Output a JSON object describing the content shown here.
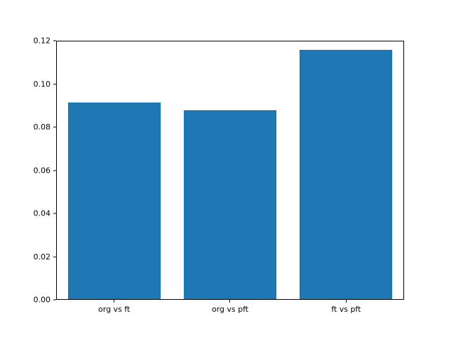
{
  "chart_data": {
    "type": "bar",
    "categories": [
      "org vs ft",
      "org vs pft",
      "ft vs pft"
    ],
    "values": [
      0.0915,
      0.088,
      0.116
    ],
    "title": "",
    "xlabel": "",
    "ylabel": "",
    "ylim": [
      0,
      0.12
    ],
    "yticks": [
      0.0,
      0.02,
      0.04,
      0.06,
      0.08,
      0.1,
      0.12
    ],
    "ytick_labels": [
      "0.00",
      "0.02",
      "0.04",
      "0.06",
      "0.08",
      "0.10",
      "0.12"
    ],
    "bar_color": "#1f77b4",
    "grid": false,
    "legend": false,
    "background_color": "#ffffff",
    "axis_color": "#000000"
  }
}
